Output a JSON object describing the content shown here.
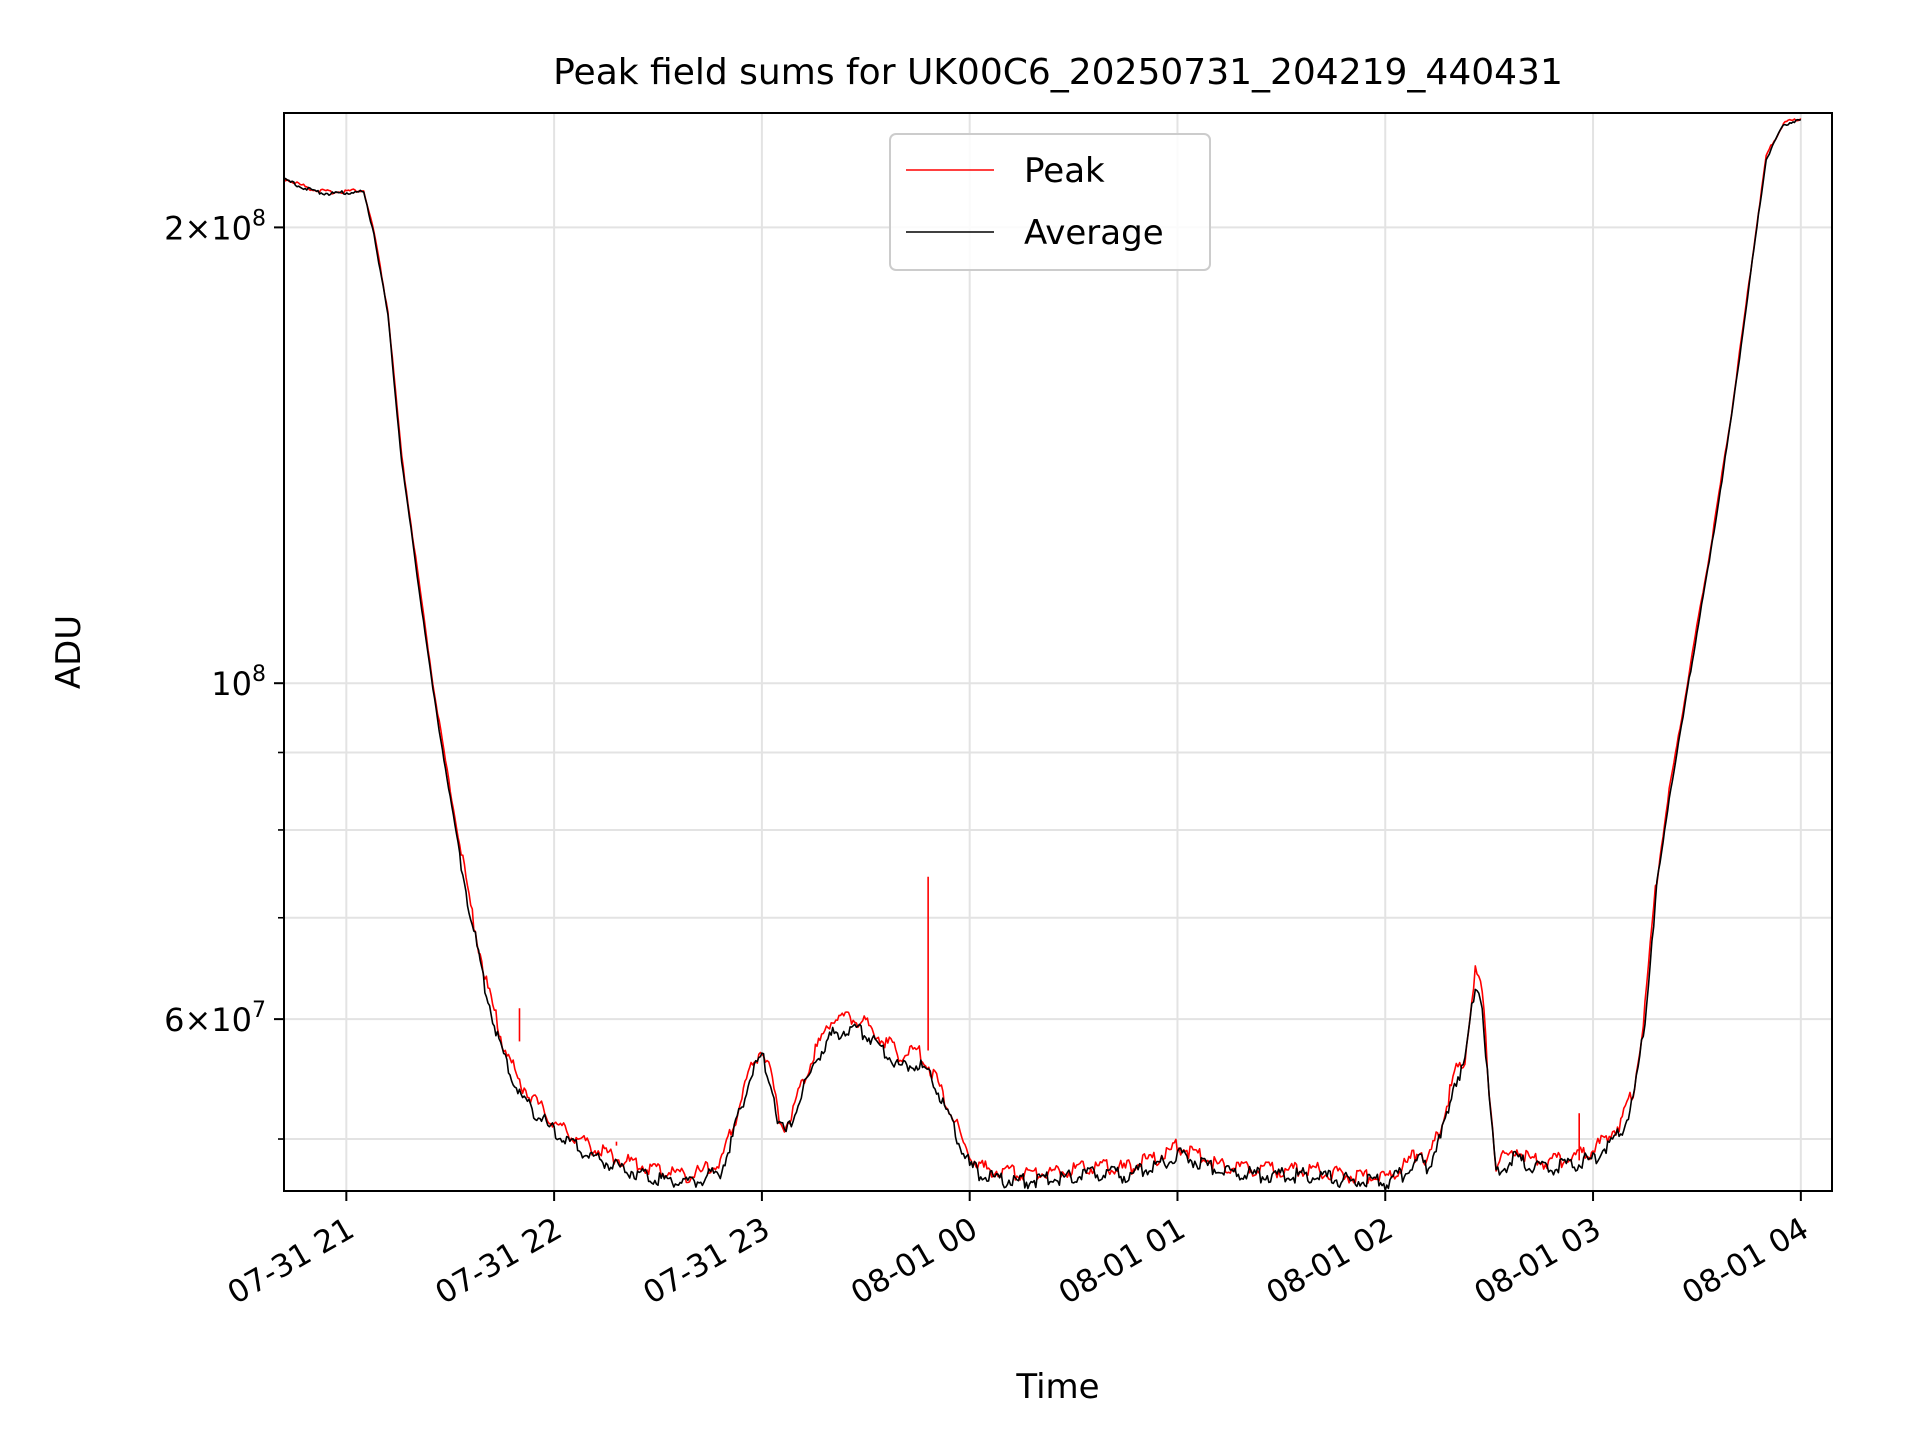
{
  "chart_data": {
    "type": "line",
    "title": "Peak field sums for UK00C6_20250731_204219_440431",
    "xlabel": "Time",
    "ylabel": "ADU",
    "y_scale": "log",
    "grid": true,
    "legend_position": "top-center",
    "x_range": [
      "2025-07-31 20:42",
      "2025-08-01 04:09"
    ],
    "y_range": [
      46200000,
      238000000
    ],
    "x_ticks": [
      {
        "t": "2025-07-31 21:00",
        "label": "07-31 21"
      },
      {
        "t": "2025-07-31 22:00",
        "label": "07-31 22"
      },
      {
        "t": "2025-07-31 23:00",
        "label": "07-31 23"
      },
      {
        "t": "2025-08-01 00:00",
        "label": "08-01 00"
      },
      {
        "t": "2025-08-01 01:00",
        "label": "08-01 01"
      },
      {
        "t": "2025-08-01 02:00",
        "label": "08-01 02"
      },
      {
        "t": "2025-08-01 03:00",
        "label": "08-01 03"
      },
      {
        "t": "2025-08-01 04:00",
        "label": "08-01 04"
      }
    ],
    "y_major_ticks": [
      {
        "value": 60000000,
        "mant": "6",
        "exp": "7"
      },
      {
        "value": 100000000,
        "mant": "",
        "exp": "8"
      },
      {
        "value": 200000000,
        "mant": "2",
        "exp": "8"
      }
    ],
    "y_minor_ticks": [
      50000000,
      70000000,
      80000000,
      90000000,
      300000000
    ],
    "series": [
      {
        "name": "Average",
        "color": "#000000",
        "points": [
          [
            "2025-07-31 20:42",
            215000000
          ],
          [
            "2025-07-31 20:50",
            211500000
          ],
          [
            "2025-07-31 20:55",
            210500000
          ],
          [
            "2025-07-31 21:02",
            211000000
          ],
          [
            "2025-07-31 21:05",
            211000000
          ],
          [
            "2025-07-31 21:08",
            198000000
          ],
          [
            "2025-07-31 21:12",
            175000000
          ],
          [
            "2025-07-31 21:16",
            140000000
          ],
          [
            "2025-07-31 21:20",
            120000000
          ],
          [
            "2025-07-31 21:25",
            99000000
          ],
          [
            "2025-07-31 21:30",
            84000000
          ],
          [
            "2025-07-31 21:35",
            72000000
          ],
          [
            "2025-07-31 21:40",
            63000000
          ],
          [
            "2025-07-31 21:45",
            57000000
          ],
          [
            "2025-07-31 21:50",
            53500000
          ],
          [
            "2025-07-31 22:00",
            50500000
          ],
          [
            "2025-07-31 22:10",
            48800000
          ],
          [
            "2025-07-31 22:20",
            47800000
          ],
          [
            "2025-07-31 22:30",
            47100000
          ],
          [
            "2025-07-31 22:40",
            46800000
          ],
          [
            "2025-07-31 22:48",
            47600000
          ],
          [
            "2025-07-31 22:52",
            50500000
          ],
          [
            "2025-07-31 22:56",
            54500000
          ],
          [
            "2025-07-31 23:00",
            56800000
          ],
          [
            "2025-07-31 23:03",
            54000000
          ],
          [
            "2025-07-31 23:05",
            51000000
          ],
          [
            "2025-07-31 23:07",
            50500000
          ],
          [
            "2025-07-31 23:10",
            52500000
          ],
          [
            "2025-07-31 23:15",
            56000000
          ],
          [
            "2025-07-31 23:20",
            58500000
          ],
          [
            "2025-07-31 23:25",
            59100000
          ],
          [
            "2025-07-31 23:30",
            58800000
          ],
          [
            "2025-07-31 23:35",
            57300000
          ],
          [
            "2025-07-31 23:40",
            55800000
          ],
          [
            "2025-07-31 23:45",
            56200000
          ],
          [
            "2025-07-31 23:50",
            54500000
          ],
          [
            "2025-07-31 23:55",
            51000000
          ],
          [
            "2025-08-01 00:00",
            48000000
          ],
          [
            "2025-08-01 00:05",
            47100000
          ],
          [
            "2025-08-01 00:15",
            46900000
          ],
          [
            "2025-08-01 00:25",
            47100000
          ],
          [
            "2025-08-01 00:35",
            47500000
          ],
          [
            "2025-08-01 00:45",
            47300000
          ],
          [
            "2025-08-01 00:55",
            48100000
          ],
          [
            "2025-08-01 01:00",
            48900000
          ],
          [
            "2025-08-01 01:05",
            48400000
          ],
          [
            "2025-08-01 01:12",
            47700000
          ],
          [
            "2025-08-01 01:25",
            47300000
          ],
          [
            "2025-08-01 01:40",
            47300000
          ],
          [
            "2025-08-01 01:50",
            46900000
          ],
          [
            "2025-08-01 02:00",
            46800000
          ],
          [
            "2025-08-01 02:05",
            47400000
          ],
          [
            "2025-08-01 02:10",
            48500000
          ],
          [
            "2025-08-01 02:12",
            47800000
          ],
          [
            "2025-08-01 02:16",
            50000000
          ],
          [
            "2025-08-01 02:20",
            54500000
          ],
          [
            "2025-08-01 02:23",
            56000000
          ],
          [
            "2025-08-01 02:26",
            63500000
          ],
          [
            "2025-08-01 02:28",
            61500000
          ],
          [
            "2025-08-01 02:30",
            53000000
          ],
          [
            "2025-08-01 02:32",
            47500000
          ],
          [
            "2025-08-01 02:35",
            48100000
          ],
          [
            "2025-08-01 02:38",
            48600000
          ],
          [
            "2025-08-01 02:42",
            47800000
          ],
          [
            "2025-08-01 02:50",
            47900000
          ],
          [
            "2025-08-01 03:00",
            48500000
          ],
          [
            "2025-08-01 03:08",
            50500000
          ],
          [
            "2025-08-01 03:12",
            53500000
          ],
          [
            "2025-08-01 03:15",
            60000000
          ],
          [
            "2025-08-01 03:18",
            72000000
          ],
          [
            "2025-08-01 03:22",
            84000000
          ],
          [
            "2025-08-01 03:26",
            95000000
          ],
          [
            "2025-08-01 03:30",
            108000000
          ],
          [
            "2025-08-01 03:34",
            122000000
          ],
          [
            "2025-08-01 03:40",
            150000000
          ],
          [
            "2025-08-01 03:46",
            190000000
          ],
          [
            "2025-08-01 03:50",
            222000000
          ],
          [
            "2025-08-01 03:55",
            234000000
          ],
          [
            "2025-08-01 04:00",
            235500000
          ]
        ]
      },
      {
        "name": "Peak",
        "color": "#ff0000",
        "points": [
          [
            "2025-07-31 20:42",
            215500000
          ],
          [
            "2025-07-31 20:50",
            212000000
          ],
          [
            "2025-07-31 20:55",
            211000000
          ],
          [
            "2025-07-31 21:02",
            211500000
          ],
          [
            "2025-07-31 21:05",
            211500000
          ],
          [
            "2025-07-31 21:08",
            198500000
          ],
          [
            "2025-07-31 21:12",
            176000000
          ],
          [
            "2025-07-31 21:16",
            141000000
          ],
          [
            "2025-07-31 21:20",
            121000000
          ],
          [
            "2025-07-31 21:25",
            100000000
          ],
          [
            "2025-07-31 21:30",
            85000000
          ],
          [
            "2025-07-31 21:35",
            73000000
          ],
          [
            "2025-07-31 21:40",
            64000000
          ],
          [
            "2025-07-31 21:45",
            58000000
          ],
          [
            "2025-07-31 21:50",
            54500000
          ],
          [
            "2025-07-31 22:00",
            51200000
          ],
          [
            "2025-07-31 22:10",
            49500000
          ],
          [
            "2025-07-31 22:20",
            48400000
          ],
          [
            "2025-07-31 22:30",
            47700000
          ],
          [
            "2025-07-31 22:40",
            47300000
          ],
          [
            "2025-07-31 22:48",
            48200000
          ],
          [
            "2025-07-31 22:52",
            51200000
          ],
          [
            "2025-07-31 22:56",
            55200000
          ],
          [
            "2025-07-31 23:00",
            57500000
          ],
          [
            "2025-07-31 23:03",
            54800000
          ],
          [
            "2025-07-31 23:05",
            51500000
          ],
          [
            "2025-07-31 23:07",
            51000000
          ],
          [
            "2025-07-31 23:10",
            53200000
          ],
          [
            "2025-07-31 23:15",
            57000000
          ],
          [
            "2025-07-31 23:20",
            60000000
          ],
          [
            "2025-07-31 23:25",
            60200000
          ],
          [
            "2025-07-31 23:30",
            59600000
          ],
          [
            "2025-07-31 23:35",
            58200000
          ],
          [
            "2025-07-31 23:40",
            56800000
          ],
          [
            "2025-07-31 23:45",
            57200000
          ],
          [
            "2025-07-31 23:50",
            55000000
          ],
          [
            "2025-07-31 23:55",
            51800000
          ],
          [
            "2025-08-01 00:00",
            48600000
          ],
          [
            "2025-08-01 00:05",
            47700000
          ],
          [
            "2025-08-01 00:15",
            47500000
          ],
          [
            "2025-08-01 00:25",
            47600000
          ],
          [
            "2025-08-01 00:35",
            48000000
          ],
          [
            "2025-08-01 00:45",
            47800000
          ],
          [
            "2025-08-01 00:55",
            48700000
          ],
          [
            "2025-08-01 01:00",
            49500000
          ],
          [
            "2025-08-01 01:05",
            48900000
          ],
          [
            "2025-08-01 01:12",
            48100000
          ],
          [
            "2025-08-01 01:25",
            47700000
          ],
          [
            "2025-08-01 01:40",
            47700000
          ],
          [
            "2025-08-01 01:50",
            47300000
          ],
          [
            "2025-08-01 02:00",
            47200000
          ],
          [
            "2025-08-01 02:05",
            47900000
          ],
          [
            "2025-08-01 02:10",
            49200000
          ],
          [
            "2025-08-01 02:12",
            48300000
          ],
          [
            "2025-08-01 02:16",
            50800000
          ],
          [
            "2025-08-01 02:20",
            55200000
          ],
          [
            "2025-08-01 02:23",
            56600000
          ],
          [
            "2025-08-01 02:26",
            64600000
          ],
          [
            "2025-08-01 02:28",
            62500000
          ],
          [
            "2025-08-01 02:30",
            53800000
          ],
          [
            "2025-08-01 02:32",
            48200000
          ],
          [
            "2025-08-01 02:35",
            48700000
          ],
          [
            "2025-08-01 02:38",
            49200000
          ],
          [
            "2025-08-01 02:42",
            48300000
          ],
          [
            "2025-08-01 02:50",
            48400000
          ],
          [
            "2025-08-01 03:00",
            49100000
          ],
          [
            "2025-08-01 03:08",
            51200000
          ],
          [
            "2025-08-01 03:12",
            54200000
          ],
          [
            "2025-08-01 03:15",
            61000000
          ],
          [
            "2025-08-01 03:18",
            73000000
          ],
          [
            "2025-08-01 03:22",
            85000000
          ],
          [
            "2025-08-01 03:26",
            96000000
          ],
          [
            "2025-08-01 03:30",
            109000000
          ],
          [
            "2025-08-01 03:34",
            123000000
          ],
          [
            "2025-08-01 03:40",
            151000000
          ],
          [
            "2025-08-01 03:46",
            191000000
          ],
          [
            "2025-08-01 03:50",
            223000000
          ],
          [
            "2025-08-01 03:55",
            234500000
          ],
          [
            "2025-08-01 04:00",
            236000000
          ]
        ],
        "spikes": [
          [
            "2025-07-31 21:50",
            61000000
          ],
          [
            "2025-07-31 22:18",
            49800000
          ],
          [
            "2025-07-31 23:48",
            74500000
          ],
          [
            "2025-08-01 02:56",
            52000000
          ]
        ]
      }
    ],
    "legend": [
      {
        "label": "Peak",
        "color": "#ff0000"
      },
      {
        "label": "Average",
        "color": "#000000"
      }
    ]
  }
}
